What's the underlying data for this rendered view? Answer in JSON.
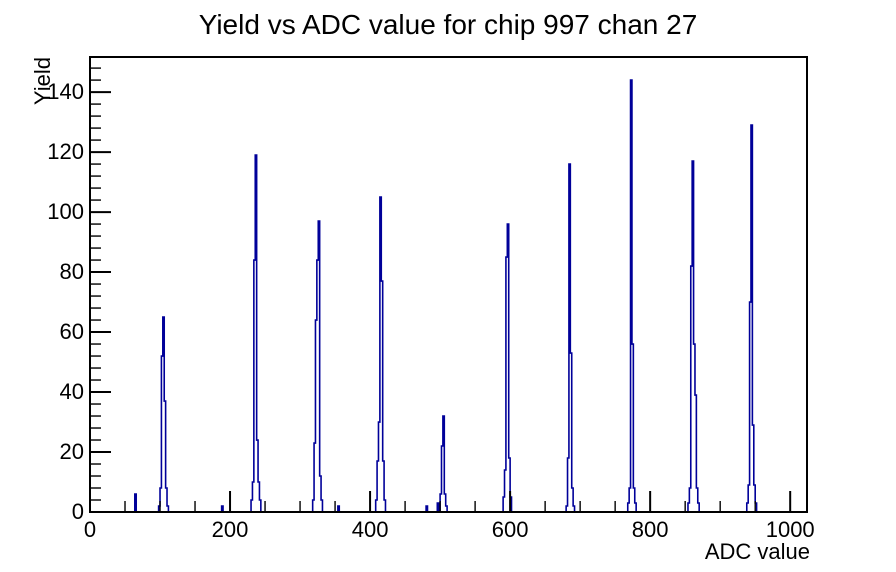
{
  "window": {
    "background": "#ffffff",
    "foreground": "#000000"
  },
  "chart_data": {
    "type": "bar",
    "subtype": "root-histogram-outline",
    "title": "Yield vs ADC value for chip 997 chan 27",
    "xlabel": "ADC value",
    "ylabel": "Yield",
    "xlim": [
      0,
      1024
    ],
    "ylim": [
      0,
      151.7
    ],
    "x_major_ticks": [
      0,
      200,
      400,
      600,
      800,
      1000
    ],
    "x_minor_step": 50,
    "y_major_ticks": [
      0,
      20,
      40,
      60,
      80,
      100,
      120,
      140
    ],
    "y_minor_step": 4,
    "grid": false,
    "legend": null,
    "line_color": "#000099",
    "frame_color": "#000000",
    "bin_width": 2,
    "bins_note": "pairs of [bin lower edge in ADC, yield]; all unlisted bins are 0",
    "bins": [
      [
        64,
        6
      ],
      [
        98,
        2
      ],
      [
        100,
        8
      ],
      [
        102,
        52
      ],
      [
        104,
        65
      ],
      [
        106,
        37
      ],
      [
        108,
        8
      ],
      [
        110,
        2
      ],
      [
        188,
        2
      ],
      [
        230,
        4
      ],
      [
        232,
        10
      ],
      [
        234,
        84
      ],
      [
        236,
        119
      ],
      [
        238,
        24
      ],
      [
        240,
        10
      ],
      [
        242,
        4
      ],
      [
        318,
        4
      ],
      [
        320,
        23
      ],
      [
        322,
        64
      ],
      [
        324,
        84
      ],
      [
        326,
        97
      ],
      [
        328,
        12
      ],
      [
        330,
        4
      ],
      [
        354,
        2
      ],
      [
        408,
        4
      ],
      [
        410,
        17
      ],
      [
        412,
        30
      ],
      [
        414,
        105
      ],
      [
        416,
        77
      ],
      [
        418,
        17
      ],
      [
        420,
        4
      ],
      [
        480,
        2
      ],
      [
        496,
        3
      ],
      [
        500,
        6
      ],
      [
        502,
        22
      ],
      [
        504,
        32
      ],
      [
        506,
        6
      ],
      [
        508,
        2
      ],
      [
        590,
        5
      ],
      [
        592,
        14
      ],
      [
        594,
        85
      ],
      [
        596,
        96
      ],
      [
        598,
        18
      ],
      [
        600,
        5
      ],
      [
        680,
        2
      ],
      [
        682,
        18
      ],
      [
        684,
        116
      ],
      [
        686,
        53
      ],
      [
        688,
        8
      ],
      [
        690,
        2
      ],
      [
        768,
        3
      ],
      [
        770,
        8
      ],
      [
        772,
        144
      ],
      [
        774,
        56
      ],
      [
        776,
        8
      ],
      [
        778,
        3
      ],
      [
        854,
        3
      ],
      [
        856,
        8
      ],
      [
        858,
        82
      ],
      [
        860,
        117
      ],
      [
        862,
        56
      ],
      [
        864,
        39
      ],
      [
        866,
        8
      ],
      [
        868,
        3
      ],
      [
        938,
        3
      ],
      [
        940,
        9
      ],
      [
        942,
        70
      ],
      [
        944,
        129
      ],
      [
        946,
        29
      ],
      [
        948,
        9
      ],
      [
        950,
        3
      ]
    ],
    "peak_summary": {
      "adc_centers": [
        105,
        237,
        327,
        415,
        505,
        597,
        685,
        773,
        861,
        945
      ],
      "peak_yields": [
        65,
        119,
        97,
        105,
        32,
        96,
        116,
        144,
        117,
        129
      ]
    }
  }
}
